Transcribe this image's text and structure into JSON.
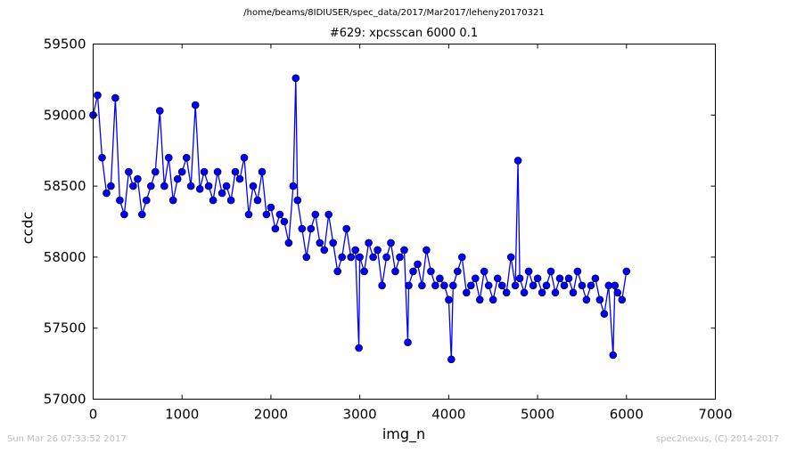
{
  "page": {
    "suptitle": "/home/beams/8IDIUSER/spec_data/2017/Mar2017/leheny20170321",
    "timestamp": "Sun Mar 26 07:33:52 2017",
    "credit": "spec2nexus, (C) 2014-2017"
  },
  "chart_data": {
    "type": "line",
    "title": "#629: xpcsscan 6000 0.1",
    "xlabel": "img_n",
    "ylabel": "ccdc",
    "xlim": [
      0,
      7000
    ],
    "ylim": [
      57000,
      59500
    ],
    "xticks": [
      0,
      1000,
      2000,
      3000,
      4000,
      5000,
      6000,
      7000
    ],
    "yticks": [
      57000,
      57500,
      58000,
      58500,
      59000,
      59500
    ],
    "grid": false,
    "legend": "none",
    "marker": "circle",
    "color": "#0000ff",
    "series": [
      {
        "x": [
          0,
          50,
          100,
          150,
          200,
          250,
          300,
          350,
          400,
          450,
          500,
          550,
          600,
          650,
          700,
          750,
          800,
          850,
          900,
          950,
          1000,
          1050,
          1100,
          1150,
          1200,
          1250,
          1300,
          1350,
          1400,
          1450,
          1500,
          1550,
          1600,
          1650,
          1700,
          1750,
          1800,
          1850,
          1900,
          1950,
          2000,
          2050,
          2100,
          2150,
          2200,
          2250,
          2280,
          2300,
          2350,
          2400,
          2450,
          2500,
          2550,
          2600,
          2650,
          2700,
          2750,
          2800,
          2850,
          2900,
          2950,
          2990,
          3000,
          3050,
          3100,
          3150,
          3200,
          3250,
          3300,
          3350,
          3400,
          3450,
          3500,
          3540,
          3550,
          3600,
          3650,
          3700,
          3750,
          3800,
          3850,
          3900,
          3950,
          4000,
          4030,
          4050,
          4100,
          4150,
          4200,
          4250,
          4300,
          4350,
          4400,
          4450,
          4500,
          4550,
          4600,
          4650,
          4700,
          4750,
          4780,
          4800,
          4850,
          4900,
          4950,
          5000,
          5050,
          5100,
          5150,
          5200,
          5250,
          5300,
          5350,
          5400,
          5450,
          5500,
          5550,
          5600,
          5650,
          5700,
          5750,
          5800,
          5850,
          5870,
          5900,
          5950,
          6000
        ],
        "values": [
          59000,
          59140,
          58700,
          58450,
          58500,
          59120,
          58400,
          58300,
          58600,
          58500,
          58550,
          58300,
          58400,
          58500,
          58600,
          59030,
          58500,
          58700,
          58400,
          58550,
          58600,
          58700,
          58500,
          59070,
          58480,
          58600,
          58500,
          58400,
          58600,
          58450,
          58500,
          58400,
          58600,
          58550,
          58700,
          58300,
          58500,
          58400,
          58600,
          58300,
          58350,
          58200,
          58300,
          58250,
          58100,
          58500,
          59260,
          58400,
          58200,
          58000,
          58200,
          58300,
          58100,
          58050,
          58300,
          58100,
          57900,
          58000,
          58200,
          58000,
          58050,
          57360,
          58000,
          57900,
          58100,
          58000,
          58050,
          57800,
          58000,
          58100,
          57900,
          58000,
          58050,
          57400,
          57800,
          57900,
          57950,
          57800,
          58050,
          57900,
          57800,
          57850,
          57800,
          57700,
          57280,
          57800,
          57900,
          58000,
          57750,
          57800,
          57850,
          57700,
          57900,
          57800,
          57700,
          57850,
          57800,
          57750,
          58000,
          57800,
          58680,
          57850,
          57750,
          57900,
          57800,
          57850,
          57750,
          57800,
          57900,
          57750,
          57850,
          57800,
          57850,
          57750,
          57900,
          57800,
          57700,
          57800,
          57850,
          57700,
          57600,
          57800,
          57310,
          57800,
          57750,
          57700,
          57900
        ]
      }
    ]
  }
}
